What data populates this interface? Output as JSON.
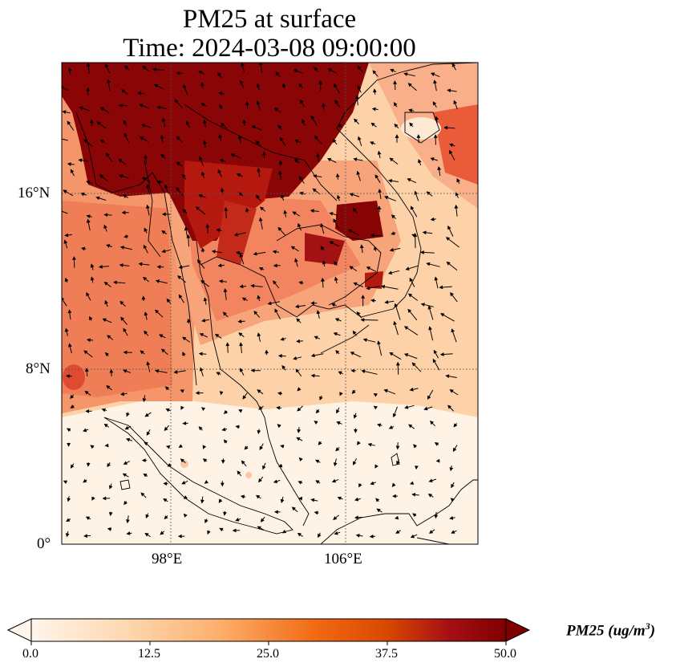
{
  "title": {
    "line1": "PM25 at surface",
    "line2": "Time: 2024-03-08 09:00:00"
  },
  "map": {
    "type": "gridded field with wind vectors",
    "variable": "PM25",
    "lon_ticks": [
      "98°E",
      "106°E"
    ],
    "lat_ticks": [
      "16°N",
      "8°N",
      "0°"
    ],
    "gridlines": "dotted",
    "colormap": [
      "#fff5eb",
      "#fdd8b0",
      "#fdae6b",
      "#f16913",
      "#d94801",
      "#a50f15",
      "#7f0000"
    ]
  },
  "colorbar": {
    "label_main": "PM25 (ug/m",
    "label_sup": "3",
    "label_end": ")",
    "ticks": [
      "0.0",
      "12.5",
      "25.0",
      "37.5",
      "50.0"
    ],
    "extend": "both"
  }
}
